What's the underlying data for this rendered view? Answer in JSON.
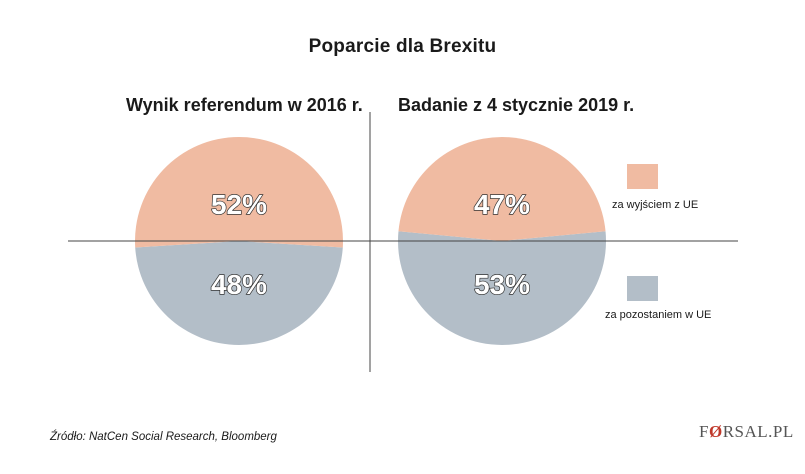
{
  "title": "Poparcie dla Brexitu",
  "colors": {
    "leave": "#f0bba2",
    "remain": "#b3bec8",
    "axis": "#444444",
    "text_outline": "#333333"
  },
  "chart_data": [
    {
      "type": "pie",
      "title": "Wynik referendum w 2016 r.",
      "categories": [
        "za wyjściem z UE",
        "za pozostaniem w UE"
      ],
      "values": [
        52,
        48
      ],
      "labels": [
        "52%",
        "48%"
      ]
    },
    {
      "type": "pie",
      "title": "Badanie z 4 stycznie 2019 r.",
      "categories": [
        "za wyjściem z UE",
        "za pozostaniem w UE"
      ],
      "values": [
        47,
        53
      ],
      "labels": [
        "47%",
        "53%"
      ]
    }
  ],
  "legend": [
    {
      "label": "za wyjściem z UE",
      "color": "#f0bba2"
    },
    {
      "label": "za pozostaniem w UE",
      "color": "#b3bec8"
    }
  ],
  "source": "Źródło: NatCen Social Research, Bloomberg",
  "logo": {
    "text": "FORSAL.PL"
  }
}
